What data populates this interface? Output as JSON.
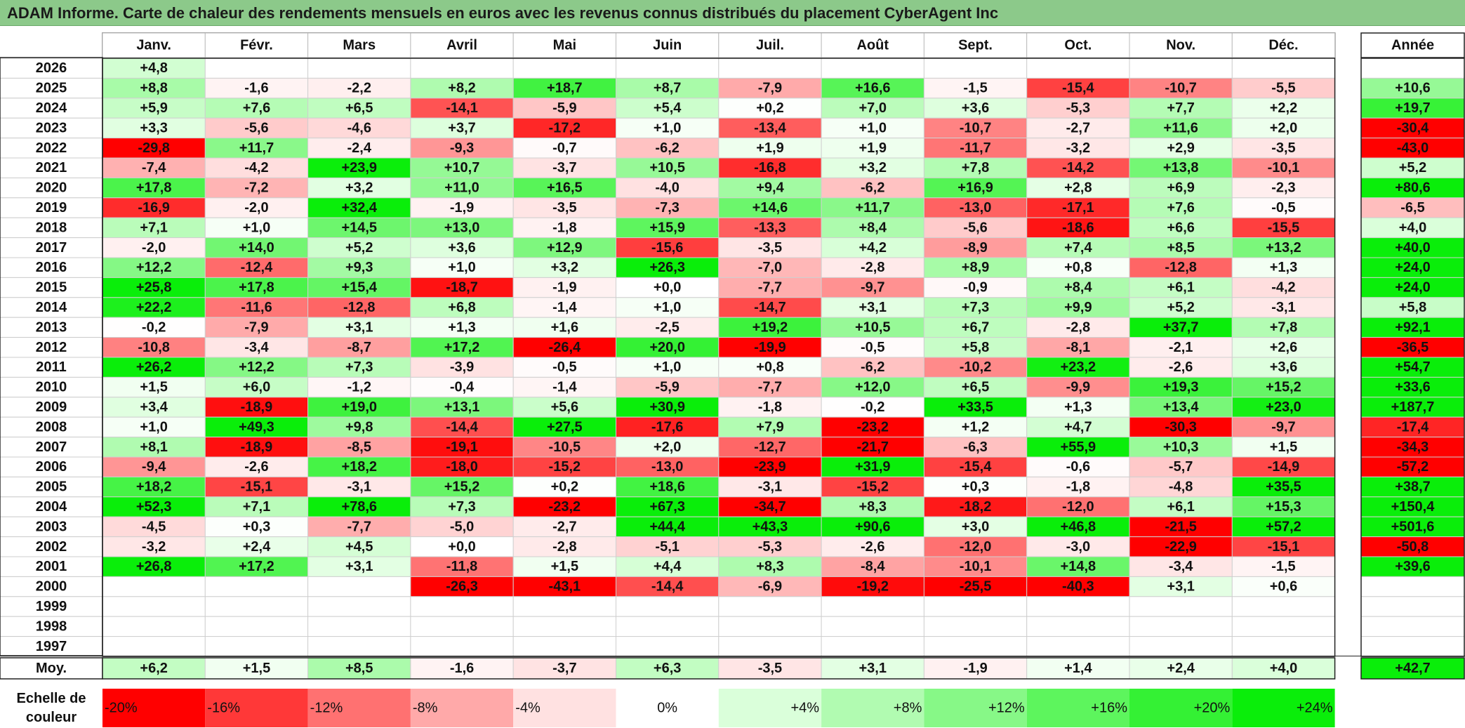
{
  "title": "ADAM Informe. Carte de chaleur des rendements mensuels en euros avec les revenus connus distribués du placement CyberAgent Inc",
  "chart_data": {
    "type": "heatmap",
    "title": "ADAM Informe. Carte de chaleur des rendements mensuels en euros avec les revenus connus distribués du placement CyberAgent Inc",
    "months": [
      "Janv.",
      "Févr.",
      "Mars",
      "Avril",
      "Mai",
      "Juin",
      "Juil.",
      "Août",
      "Sept.",
      "Oct.",
      "Nov.",
      "Déc."
    ],
    "year_header": "Année",
    "rows": [
      {
        "year": "2026",
        "values": [
          "+4,8",
          "",
          "",
          "",
          "",
          "",
          "",
          "",
          "",
          "",
          "",
          ""
        ],
        "annual": ""
      },
      {
        "year": "2025",
        "values": [
          "+8,8",
          "-1,6",
          "-2,2",
          "+8,2",
          "+18,7",
          "+8,7",
          "-7,9",
          "+16,6",
          "-1,5",
          "-15,4",
          "-10,7",
          "-5,5"
        ],
        "annual": "+10,6"
      },
      {
        "year": "2024",
        "values": [
          "+5,9",
          "+7,6",
          "+6,5",
          "-14,1",
          "-5,9",
          "+5,4",
          "+0,2",
          "+7,0",
          "+3,6",
          "-5,3",
          "+7,7",
          "+2,2"
        ],
        "annual": "+19,7"
      },
      {
        "year": "2023",
        "values": [
          "+3,3",
          "-5,6",
          "-4,6",
          "+3,7",
          "-17,2",
          "+1,0",
          "-13,4",
          "+1,0",
          "-10,7",
          "-2,7",
          "+11,6",
          "+2,0"
        ],
        "annual": "-30,4"
      },
      {
        "year": "2022",
        "values": [
          "-29,8",
          "+11,7",
          "-2,4",
          "-9,3",
          "-0,7",
          "-6,2",
          "+1,9",
          "+1,9",
          "-11,7",
          "-3,2",
          "+2,9",
          "-3,5"
        ],
        "annual": "-43,0"
      },
      {
        "year": "2021",
        "values": [
          "-7,4",
          "-4,2",
          "+23,9",
          "+10,7",
          "-3,7",
          "+10,5",
          "-16,8",
          "+3,2",
          "+7,8",
          "-14,2",
          "+13,8",
          "-10,1"
        ],
        "annual": "+5,2"
      },
      {
        "year": "2020",
        "values": [
          "+17,8",
          "-7,2",
          "+3,2",
          "+11,0",
          "+16,5",
          "-4,0",
          "+9,4",
          "-6,2",
          "+16,9",
          "+2,8",
          "+6,9",
          "-2,3"
        ],
        "annual": "+80,6"
      },
      {
        "year": "2019",
        "values": [
          "-16,9",
          "-2,0",
          "+32,4",
          "-1,9",
          "-3,5",
          "-7,3",
          "+14,6",
          "+11,7",
          "-13,0",
          "-17,1",
          "+7,6",
          "-0,5"
        ],
        "annual": "-6,5"
      },
      {
        "year": "2018",
        "values": [
          "+7,1",
          "+1,0",
          "+14,5",
          "+13,0",
          "-1,8",
          "+15,9",
          "-13,3",
          "+8,4",
          "-5,6",
          "-18,6",
          "+6,6",
          "-15,5"
        ],
        "annual": "+4,0"
      },
      {
        "year": "2017",
        "values": [
          "-2,0",
          "+14,0",
          "+5,2",
          "+3,6",
          "+12,9",
          "-15,6",
          "-3,5",
          "+4,2",
          "-8,9",
          "+7,4",
          "+8,5",
          "+13,2"
        ],
        "annual": "+40,0"
      },
      {
        "year": "2016",
        "values": [
          "+12,2",
          "-12,4",
          "+9,3",
          "+1,0",
          "+3,2",
          "+26,3",
          "-7,0",
          "-2,8",
          "+8,9",
          "+0,8",
          "-12,8",
          "+1,3"
        ],
        "annual": "+24,0"
      },
      {
        "year": "2015",
        "values": [
          "+25,8",
          "+17,8",
          "+15,4",
          "-18,7",
          "-1,9",
          "+0,0",
          "-7,7",
          "-9,7",
          "-0,9",
          "+8,4",
          "+6,1",
          "-4,2"
        ],
        "annual": "+24,0"
      },
      {
        "year": "2014",
        "values": [
          "+22,2",
          "-11,6",
          "-12,8",
          "+6,8",
          "-1,4",
          "+1,0",
          "-14,7",
          "+3,1",
          "+7,3",
          "+9,9",
          "+5,2",
          "-3,1"
        ],
        "annual": "+5,8"
      },
      {
        "year": "2013",
        "values": [
          "-0,2",
          "-7,9",
          "+3,1",
          "+1,3",
          "+1,6",
          "-2,5",
          "+19,2",
          "+10,5",
          "+6,7",
          "-2,8",
          "+37,7",
          "+7,8"
        ],
        "annual": "+92,1"
      },
      {
        "year": "2012",
        "values": [
          "-10,8",
          "-3,4",
          "-8,7",
          "+17,2",
          "-26,4",
          "+20,0",
          "-19,9",
          "-0,5",
          "+5,8",
          "-8,1",
          "-2,1",
          "+2,6"
        ],
        "annual": "-36,5"
      },
      {
        "year": "2011",
        "values": [
          "+26,2",
          "+12,2",
          "+7,3",
          "-3,9",
          "-0,5",
          "+1,0",
          "+0,8",
          "-6,2",
          "-10,2",
          "+23,2",
          "-2,6",
          "+3,6"
        ],
        "annual": "+54,7"
      },
      {
        "year": "2010",
        "values": [
          "+1,5",
          "+6,0",
          "-1,2",
          "-0,4",
          "-1,4",
          "-5,9",
          "-7,7",
          "+12,0",
          "+6,5",
          "-9,9",
          "+19,3",
          "+15,2"
        ],
        "annual": "+33,6"
      },
      {
        "year": "2009",
        "values": [
          "+3,4",
          "-18,9",
          "+19,0",
          "+13,1",
          "+5,6",
          "+30,9",
          "-1,8",
          "-0,2",
          "+33,5",
          "+1,3",
          "+13,4",
          "+23,0"
        ],
        "annual": "+187,7"
      },
      {
        "year": "2008",
        "values": [
          "+1,0",
          "+49,3",
          "+9,8",
          "-14,4",
          "+27,5",
          "-17,6",
          "+7,9",
          "-23,2",
          "+1,2",
          "+4,7",
          "-30,3",
          "-9,7"
        ],
        "annual": "-17,4"
      },
      {
        "year": "2007",
        "values": [
          "+8,1",
          "-18,9",
          "-8,5",
          "-19,1",
          "-10,5",
          "+2,0",
          "-12,7",
          "-21,7",
          "-6,3",
          "+55,9",
          "+10,3",
          "+1,5"
        ],
        "annual": "-34,3"
      },
      {
        "year": "2006",
        "values": [
          "-9,4",
          "-2,6",
          "+18,2",
          "-18,0",
          "-15,2",
          "-13,0",
          "-23,9",
          "+31,9",
          "-15,4",
          "-0,6",
          "-5,7",
          "-14,9"
        ],
        "annual": "-57,2"
      },
      {
        "year": "2005",
        "values": [
          "+18,2",
          "-15,1",
          "-3,1",
          "+15,2",
          "+0,2",
          "+18,6",
          "-3,1",
          "-15,2",
          "+0,3",
          "-1,8",
          "-4,8",
          "+35,5"
        ],
        "annual": "+38,7"
      },
      {
        "year": "2004",
        "values": [
          "+52,3",
          "+7,1",
          "+78,6",
          "+7,3",
          "-23,2",
          "+67,3",
          "-34,7",
          "+8,3",
          "-18,2",
          "-12,0",
          "+6,1",
          "+15,3"
        ],
        "annual": "+150,4"
      },
      {
        "year": "2003",
        "values": [
          "-4,5",
          "+0,3",
          "-7,7",
          "-5,0",
          "-2,7",
          "+44,4",
          "+43,3",
          "+90,6",
          "+3,0",
          "+46,8",
          "-21,5",
          "+57,2"
        ],
        "annual": "+501,6"
      },
      {
        "year": "2002",
        "values": [
          "-3,2",
          "+2,4",
          "+4,5",
          "+0,0",
          "-2,8",
          "-5,1",
          "-5,3",
          "-2,6",
          "-12,0",
          "-3,0",
          "-22,9",
          "-15,1"
        ],
        "annual": "-50,8"
      },
      {
        "year": "2001",
        "values": [
          "+26,8",
          "+17,2",
          "+3,1",
          "-11,8",
          "+1,5",
          "+4,4",
          "+8,3",
          "-8,4",
          "-10,1",
          "+14,8",
          "-3,4",
          "-1,5"
        ],
        "annual": "+39,6"
      },
      {
        "year": "2000",
        "values": [
          "",
          "",
          "",
          "-26,3",
          "-43,1",
          "-14,4",
          "-6,9",
          "-19,2",
          "-25,5",
          "-40,3",
          "+3,1",
          "+0,6"
        ],
        "annual": ""
      },
      {
        "year": "1999",
        "values": [
          "",
          "",
          "",
          "",
          "",
          "",
          "",
          "",
          "",
          "",
          "",
          ""
        ],
        "annual": ""
      },
      {
        "year": "1998",
        "values": [
          "",
          "",
          "",
          "",
          "",
          "",
          "",
          "",
          "",
          "",
          "",
          ""
        ],
        "annual": ""
      },
      {
        "year": "1997",
        "values": [
          "",
          "",
          "",
          "",
          "",
          "",
          "",
          "",
          "",
          "",
          "",
          ""
        ],
        "annual": ""
      }
    ],
    "average": {
      "label": "Moy.",
      "values": [
        "+6,2",
        "+1,5",
        "+8,5",
        "-1,6",
        "-3,7",
        "+6,3",
        "-3,5",
        "+3,1",
        "-1,9",
        "+1,4",
        "+2,4",
        "+4,0"
      ],
      "annual": "+42,7"
    },
    "scale": {
      "label_line1": "Echelle de",
      "label_line2": "couleur",
      "stops": [
        "-20%",
        "-16%",
        "-12%",
        "-8%",
        "-4%",
        "0%",
        "+4%",
        "+8%",
        "+12%",
        "+16%",
        "+20%",
        "+24%"
      ],
      "stop_values": [
        -20,
        -16,
        -12,
        -8,
        -4,
        0,
        4,
        8,
        12,
        16,
        20,
        24
      ]
    },
    "colors": {
      "negative_max": "#ff0000",
      "neutral": "#ffffff",
      "positive_max": "#00ee00",
      "title_bar": "#8cc98a"
    }
  }
}
